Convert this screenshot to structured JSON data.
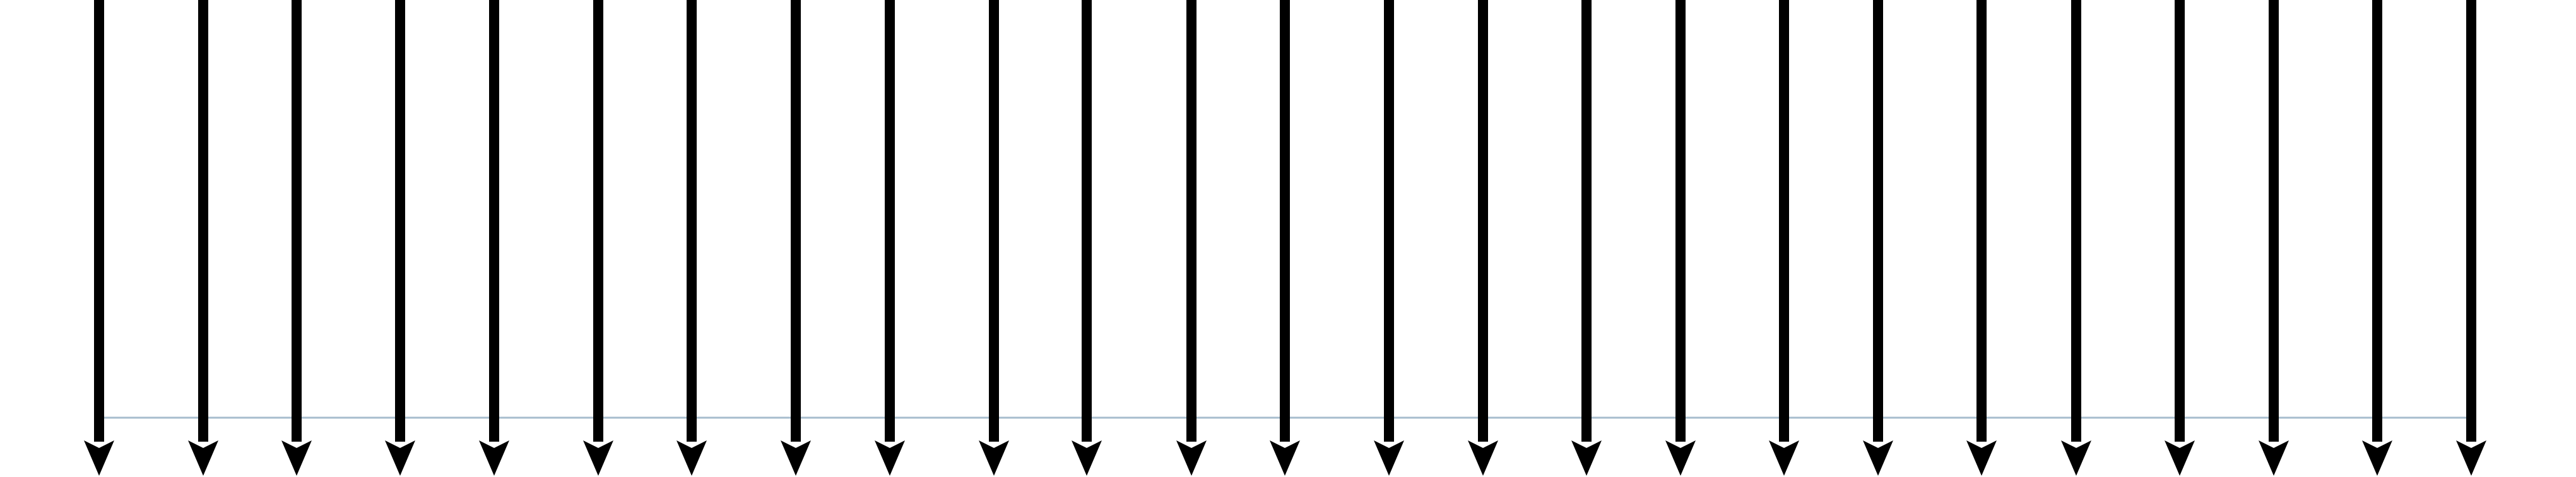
{
  "diagram": {
    "arrow_count": 25,
    "arrow_direction": "down",
    "arrow_color": "#000000",
    "baseline_color": "#a7bccd",
    "background_color": "#ffffff"
  }
}
